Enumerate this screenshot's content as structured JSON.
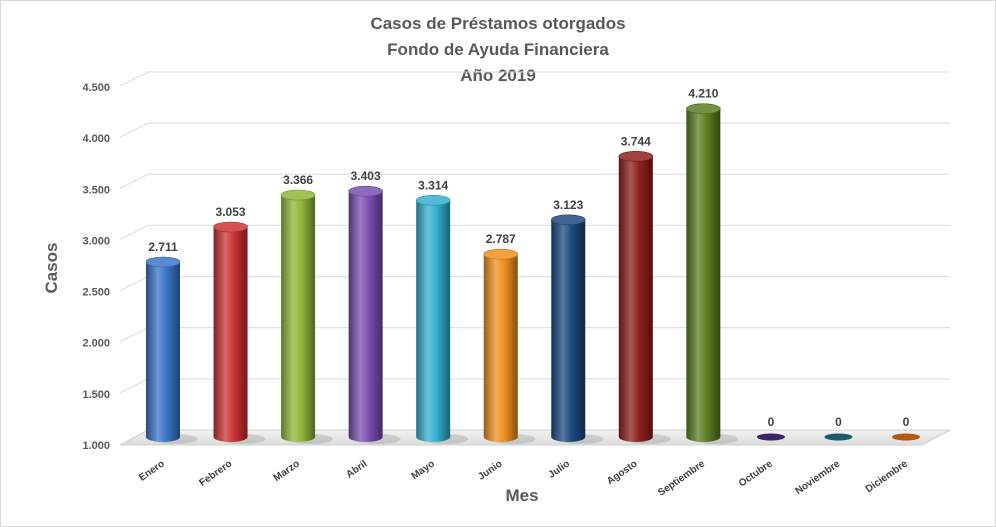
{
  "chart_data": {
    "type": "bar",
    "title": [
      "Casos de Préstamos  otorgados",
      "Fondo de Ayuda  Financiera",
      "Año 2019"
    ],
    "xlabel": "Mes",
    "ylabel": "Casos",
    "categories": [
      "Enero",
      "Febrero",
      "Marzo",
      "Abril",
      "Mayo",
      "Junio",
      "Julio",
      "Agosto",
      "Septiembre",
      "Octubre",
      "Noviembre",
      "Diciembre"
    ],
    "values": [
      2711,
      3053,
      3366,
      3403,
      3314,
      2787,
      3123,
      3744,
      4210,
      0,
      0,
      0
    ],
    "value_labels": [
      "2.711",
      "3.053",
      "3.366",
      "3.403",
      "3.314",
      "2.787",
      "3.123",
      "3.744",
      "4.210",
      "0",
      "0",
      "0"
    ],
    "ylim": [
      1000,
      4500
    ],
    "yticks": [
      1000,
      1500,
      2000,
      2500,
      3000,
      3500,
      4000,
      4500
    ],
    "ytick_labels": [
      "1.000",
      "1.500",
      "2.000",
      "2.500",
      "3.000",
      "3.500",
      "4.000",
      "4.500"
    ],
    "grid": true,
    "legend": "none",
    "colors": [
      "#3a76c9",
      "#cc3333",
      "#8fb83a",
      "#7a4fb0",
      "#33b0d0",
      "#f0901f",
      "#1f4a80",
      "#8f1f1f",
      "#5a7f22",
      "#3b2566",
      "#1a5b6a",
      "#b35a10"
    ]
  }
}
